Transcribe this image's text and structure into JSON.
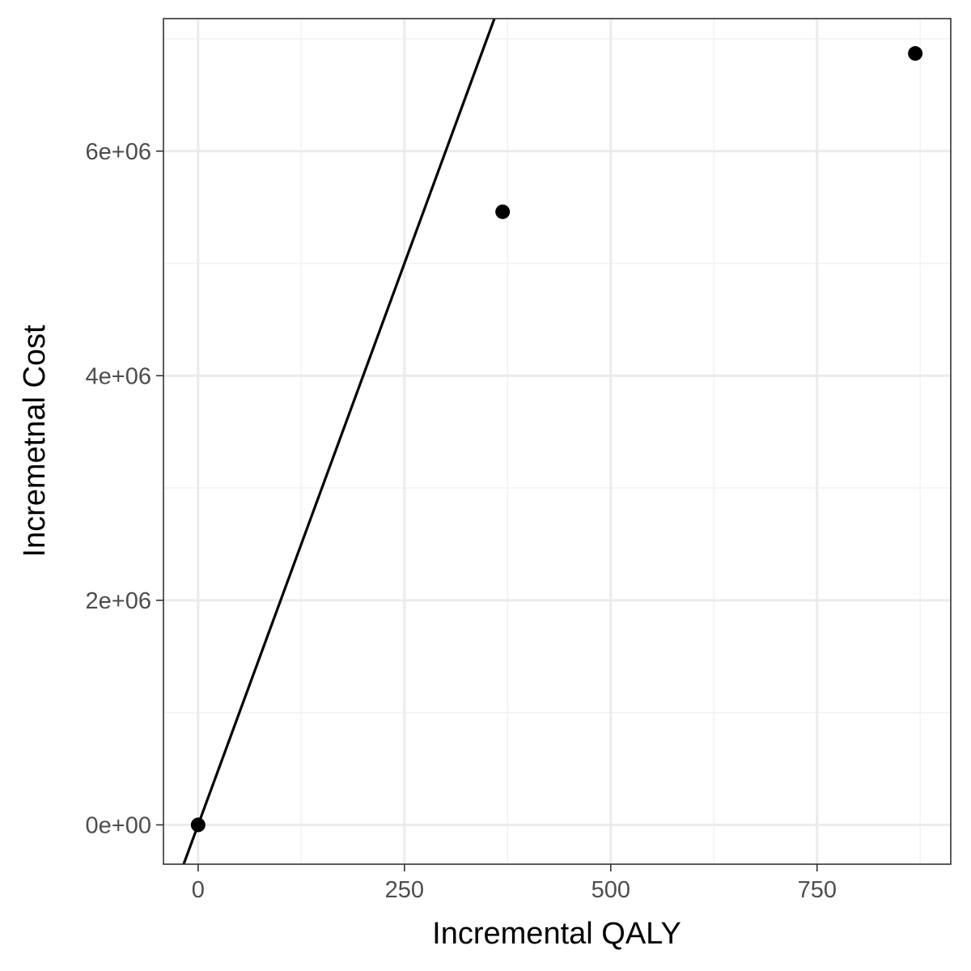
{
  "chart_data": {
    "type": "scatter",
    "title": "",
    "xlabel": "Incremental QALY",
    "ylabel": "Incremetnal Cost",
    "xlim": [
      -42,
      912
    ],
    "ylim": [
      -350000,
      7180000
    ],
    "x_ticks": [
      0,
      250,
      500,
      750
    ],
    "x_tick_labels": [
      "0",
      "250",
      "500",
      "750"
    ],
    "y_ticks": [
      0,
      2000000,
      4000000,
      6000000
    ],
    "y_tick_labels": [
      "0e+00",
      "2e+06",
      "4e+06",
      "6e+06"
    ],
    "x_minor_ticks": [
      125,
      375,
      625,
      875
    ],
    "y_minor_ticks": [
      1000000,
      3000000,
      5000000,
      7000000
    ],
    "grid": true,
    "legend": "none",
    "points": [
      {
        "x": 0,
        "y": 0
      },
      {
        "x": 369,
        "y": 5460000
      },
      {
        "x": 869,
        "y": 6870000
      }
    ],
    "reference_line": {
      "intercept": 0,
      "slope": 20000
    },
    "colors": {
      "point": "#000000",
      "line": "#000000",
      "grid_major": "#ebebeb",
      "grid_minor": "#f2f2f2",
      "panel_border": "#333333",
      "tick_label": "#4d4d4d"
    }
  }
}
